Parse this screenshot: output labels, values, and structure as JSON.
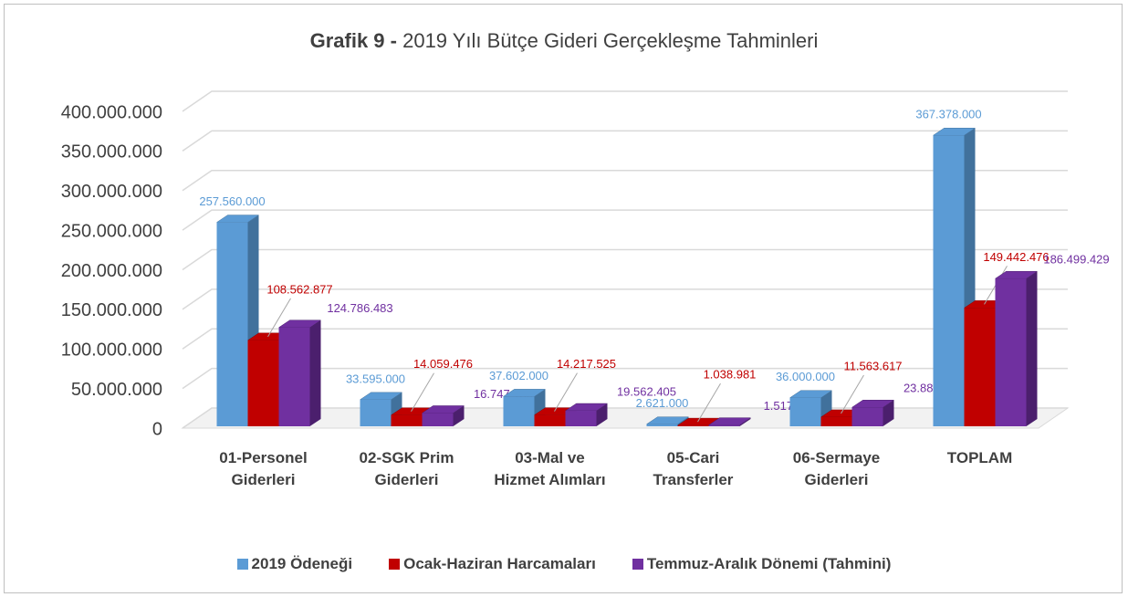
{
  "chart_data": {
    "type": "bar3d",
    "title": {
      "bold": "Grafik 9 -",
      "text": "2019 Yılı Bütçe Gideri Gerçekleşme Tahminleri"
    },
    "categories": [
      "01-Personel Giderleri",
      "02-SGK Prim Giderleri",
      "03-Mal ve Hizmet Alımları",
      "05-Cari Transferler",
      "06-Sermaye Giderleri",
      "TOPLAM"
    ],
    "series": [
      {
        "name": "2019 Ödeneği",
        "color": "#5b9bd5",
        "side": "#41719c",
        "values": [
          257560000,
          33595000,
          37602000,
          2621000,
          36000000,
          367378000
        ],
        "value_labels": [
          "257.560.000",
          "33.595.000",
          "37.602.000",
          "2.621.000",
          "36.000.000",
          "367.378.000"
        ]
      },
      {
        "name": "Ocak-Haziran Harcamaları",
        "color": "#c00000",
        "side": "#8a0000",
        "values": [
          108562877,
          14059476,
          14217525,
          1038981,
          11563617,
          149442476
        ],
        "value_labels": [
          "108.562.877",
          "14.059.476",
          "14.217.525",
          "1.038.981",
          "11.563.617",
          "149.442.476"
        ]
      },
      {
        "name": "Temmuz-Aralık Dönemi (Tahmini)",
        "color": "#7030a0",
        "side": "#4b1f6d",
        "values": [
          124786483,
          16747139,
          19562405,
          1517019,
          23886383,
          186499429
        ],
        "value_labels": [
          "124.786.483",
          "16.747.139",
          "19.562.405",
          "1.517.019",
          "23.886.383",
          "186.499.429"
        ]
      }
    ],
    "ylim": [
      0,
      400000000
    ],
    "yticks": [
      0,
      {
        "value": 50000000,
        "label": "50.000.000"
      },
      {
        "value": 100000000,
        "label": "100.000.000"
      },
      {
        "value": 150000000,
        "label": "150.000.000"
      },
      {
        "value": 200000000,
        "label": "200.000.000"
      },
      {
        "value": 250000000,
        "label": "250.000.000"
      },
      {
        "value": 300000000,
        "label": "300.000.000"
      },
      {
        "value": 350000000,
        "label": "350.000.000"
      },
      {
        "value": 400000000,
        "label": "400.000.000"
      }
    ],
    "grid": true
  }
}
